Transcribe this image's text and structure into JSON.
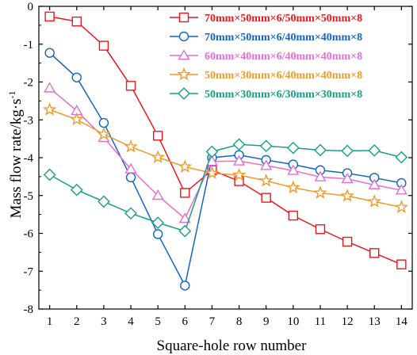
{
  "chart_data": {
    "type": "line",
    "xlabel": "Square-hole row number",
    "ylabel_main": "Mass flow rate/kg·s",
    "ylabel_sup": "-1",
    "x": [
      1,
      2,
      3,
      4,
      5,
      6,
      7,
      8,
      9,
      10,
      11,
      12,
      13,
      14
    ],
    "xlim": [
      0.6,
      14.4
    ],
    "ylim": [
      -8,
      0
    ],
    "xticks": [
      "1",
      "2",
      "3",
      "4",
      "5",
      "6",
      "7",
      "8",
      "9",
      "10",
      "11",
      "12",
      "13",
      "14"
    ],
    "yticks": [
      "0",
      "-1",
      "-2",
      "-3",
      "-4",
      "-5",
      "-6",
      "-7",
      "-8"
    ],
    "legend_position": "top-right",
    "series": [
      {
        "name": "70mm×50mm×6/50mm×50mm×8",
        "color": "#e8191e",
        "marker": "square",
        "values": [
          -0.27,
          -0.4,
          -1.04,
          -2.1,
          -3.42,
          -4.93,
          -4.33,
          -4.62,
          -5.06,
          -5.53,
          -5.89,
          -6.22,
          -6.52,
          -6.82
        ]
      },
      {
        "name": "70mm×50mm×6/40mm×40mm×8",
        "color": "#1464c8",
        "marker": "circle",
        "values": [
          -1.23,
          -1.88,
          -3.08,
          -4.52,
          -6.02,
          -7.38,
          -4.0,
          -3.93,
          -4.06,
          -4.18,
          -4.33,
          -4.41,
          -4.53,
          -4.67
        ]
      },
      {
        "name": "60mm×40mm×6/40mm×40mm×8",
        "color": "#e66ed2",
        "marker": "triangle",
        "values": [
          -2.16,
          -2.76,
          -3.47,
          -4.3,
          -5.0,
          -5.61,
          -4.1,
          -4.09,
          -4.21,
          -4.34,
          -4.51,
          -4.56,
          -4.72,
          -4.86
        ]
      },
      {
        "name": "50mm×30mm×6/40mm×40mm×8",
        "color": "#f09a28",
        "marker": "star",
        "values": [
          -2.73,
          -2.99,
          -3.38,
          -3.71,
          -3.99,
          -4.24,
          -4.41,
          -4.46,
          -4.61,
          -4.79,
          -4.93,
          -5.01,
          -5.16,
          -5.31
        ]
      },
      {
        "name": "50mm×30mm×6/30mm×30mm×8",
        "color": "#19a082",
        "marker": "diamond",
        "values": [
          -4.45,
          -4.85,
          -5.16,
          -5.47,
          -5.72,
          -5.94,
          -3.84,
          -3.65,
          -3.69,
          -3.74,
          -3.8,
          -3.82,
          -3.81,
          -3.99
        ]
      }
    ]
  }
}
